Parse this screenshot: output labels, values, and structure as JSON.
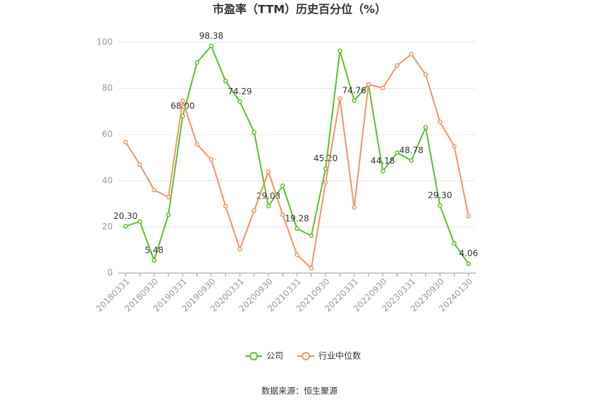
{
  "chart_data": {
    "type": "line",
    "title": "市盈率（TTM）历史百分位（%）",
    "categories": [
      "20180331",
      null,
      "20180930",
      null,
      "20190331",
      null,
      "20190930",
      null,
      "20200331",
      null,
      "20200930",
      null,
      "20210331",
      null,
      "20210930",
      null,
      "20220331",
      null,
      "20220930",
      null,
      "20230331",
      null,
      "20230930",
      null,
      "20240130"
    ],
    "series": [
      {
        "name": "公司",
        "color": "#5ac02d",
        "values": [
          20.3,
          22.3,
          5.48,
          25.3,
          68.0,
          91.2,
          98.38,
          83.2,
          74.29,
          61,
          29.03,
          37.8,
          19.28,
          16.2,
          45.2,
          96.3,
          74.76,
          81.7,
          44.18,
          52.1,
          48.78,
          63.1,
          29.3,
          12.8,
          4.06
        ],
        "value_labels": [
          "20.30",
          null,
          "5.48",
          null,
          "68.00",
          null,
          "98.38",
          null,
          "74.29",
          null,
          "29.03",
          null,
          "19.28",
          null,
          "45.20",
          null,
          "74.76",
          null,
          "44.18",
          null,
          "48.78",
          null,
          "29.30",
          null,
          "4.06"
        ]
      },
      {
        "name": "行业中位数",
        "color": "#f39365",
        "values": [
          56.7,
          47,
          36,
          32.9,
          74.7,
          55.8,
          49.1,
          29,
          10.4,
          27.1,
          43.9,
          25.3,
          7.9,
          2.1,
          39.3,
          75.6,
          28.4,
          81.7,
          80.2,
          89.9,
          94.8,
          86,
          65.5,
          54.9,
          24.7
        ]
      }
    ],
    "ylim": [
      0,
      100
    ],
    "yticks": [
      0,
      20,
      40,
      60,
      80,
      100
    ],
    "grid": true,
    "legend": "bottom",
    "source": "数据来源：恒生聚源"
  }
}
